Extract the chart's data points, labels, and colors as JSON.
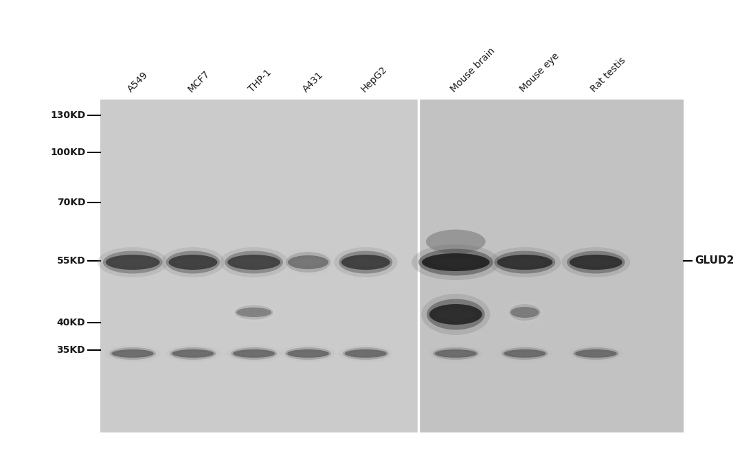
{
  "figure_width": 10.8,
  "figure_height": 6.57,
  "bg_color": "#ffffff",
  "gel_bg_left": "#cbcbcb",
  "gel_bg_right": "#c2c2c2",
  "lane_labels": [
    "A549",
    "MCF7",
    "THP-1",
    "A431",
    "HepG2",
    "Mouse brain",
    "Mouse eye",
    "Rat testis"
  ],
  "mw_markers": [
    "130KD",
    "100KD",
    "70KD",
    "55KD",
    "40KD",
    "35KD"
  ],
  "glud2_label": "GLUD2",
  "label_color": "#1a1a1a"
}
